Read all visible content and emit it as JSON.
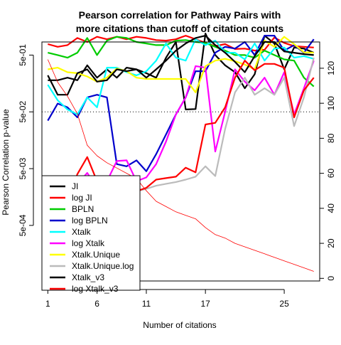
{
  "chart_data": {
    "type": "line",
    "title_lines": [
      "Pearson correlation for Pathway Pairs with",
      "more citations than cutoff of citation counts"
    ],
    "xlabel": "Number of citations",
    "ylabel": "Pearson Correlation p-value",
    "x": [
      1,
      2,
      3,
      4,
      5,
      6,
      7,
      8,
      9,
      10,
      11,
      12,
      13,
      14,
      15,
      16,
      17,
      18,
      19,
      20,
      21,
      22,
      23,
      24,
      25,
      26,
      27,
      28
    ],
    "xticks": [
      1,
      6,
      11,
      17,
      25
    ],
    "xlim": [
      0.4,
      28.6
    ],
    "y_left_log10_range": [
      -4.28,
      -0.07
    ],
    "y_left_ticks": [
      {
        "label": "5e-01",
        "value": 0.5
      },
      {
        "label": "5e-02",
        "value": 0.05
      },
      {
        "label": "5e-03",
        "value": 0.005
      },
      {
        "label": "5e-04",
        "value": 0.0005
      }
    ],
    "y_right_range": [
      -1.5,
      135
    ],
    "y_right_ticks": [
      0,
      20,
      40,
      60,
      80,
      100,
      120
    ],
    "reference_line_p": 0.05,
    "series": [
      {
        "name": "JI",
        "color": "#000000",
        "width": 2.2,
        "values": [
          0.18,
          0.18,
          0.2,
          0.18,
          0.33,
          0.2,
          0.28,
          0.2,
          0.3,
          0.28,
          0.24,
          0.2,
          0.45,
          0.85,
          0.055,
          0.056,
          1.2,
          0.5,
          0.33,
          0.25,
          0.13,
          0.23,
          1.1,
          0.8,
          0.28,
          0.68,
          0.65,
          0.55
        ]
      },
      {
        "name": "log JI",
        "color": "#ff0000",
        "width": 2.2,
        "values": [
          0.78,
          0.7,
          0.75,
          1.0,
          0.85,
          1.05,
          0.95,
          1.05,
          0.95,
          1.05,
          1.0,
          0.92,
          0.9,
          0.95,
          1.1,
          0.95,
          0.82,
          0.72,
          0.78,
          0.64,
          0.65,
          0.6,
          0.62,
          1.02,
          0.82,
          0.72,
          0.7,
          0.68
        ]
      },
      {
        "name": "BPLN",
        "color": "#00cc00",
        "width": 2.2,
        "values": [
          0.55,
          0.5,
          0.45,
          0.55,
          1.0,
          0.5,
          0.9,
          1.05,
          1.0,
          0.85,
          0.8,
          0.75,
          0.75,
          0.9,
          0.92,
          0.85,
          0.82,
          0.7,
          0.6,
          0.5,
          0.5,
          0.45,
          0.6,
          0.5,
          0.42,
          0.4,
          0.2,
          0.14
        ]
      },
      {
        "name": "log BPLN",
        "color": "#0000cc",
        "width": 2.2,
        "values": [
          0.035,
          0.07,
          0.06,
          0.04,
          0.09,
          0.1,
          0.09,
          0.006,
          0.0055,
          0.007,
          0.0045,
          0.009,
          0.02,
          0.045,
          0.09,
          0.26,
          0.26,
          0.55,
          0.7,
          0.65,
          0.85,
          0.5,
          1.1,
          1.1,
          0.6,
          0.75,
          0.55,
          0.95
        ]
      },
      {
        "name": "Xtalk",
        "color": "#00ffff",
        "width": 2.2,
        "values": [
          0.15,
          0.08,
          0.055,
          0.045,
          0.09,
          0.06,
          0.3,
          0.3,
          0.25,
          0.22,
          0.26,
          0.4,
          0.8,
          0.45,
          0.4,
          0.95,
          0.75,
          0.9,
          0.55,
          0.55,
          0.42,
          0.8,
          0.4,
          0.65,
          0.68,
          0.45,
          0.48,
          0.43
        ]
      },
      {
        "name": "log Xtalk",
        "color": "#ff00ff",
        "width": 2.2,
        "values": [
          0.0005,
          0.0011,
          0.0018,
          0.0027,
          0.0042,
          0.0023,
          0.003,
          0.0068,
          0.007,
          0.003,
          0.0035,
          0.006,
          0.015,
          0.045,
          0.09,
          0.32,
          0.3,
          0.01,
          0.05,
          0.28,
          0.17,
          0.12,
          0.2,
          0.1,
          0.25,
          0.045,
          0.13,
          0.4
        ]
      },
      {
        "name": "Xtalk.Unique",
        "color": "#ffff00",
        "width": 2.2,
        "values": [
          0.28,
          0.3,
          0.25,
          0.24,
          0.21,
          0.17,
          0.2,
          0.29,
          0.26,
          0.2,
          0.19,
          0.19,
          0.19,
          0.19,
          0.19,
          0.11,
          0.32,
          0.4,
          0.43,
          0.39,
          0.34,
          0.28,
          0.9,
          0.7,
          1.05,
          0.78,
          0.56,
          0.55
        ]
      },
      {
        "name": "Xtalk.Unique.log",
        "color": "#bbbbbb",
        "width": 2.2,
        "values": [
          0.0005,
          0.0007,
          0.0008,
          0.0009,
          0.0011,
          0.0013,
          0.0014,
          0.0016,
          0.0018,
          0.002,
          0.0022,
          0.0025,
          0.0027,
          0.0029,
          0.0032,
          0.0036,
          0.0055,
          0.0037,
          0.025,
          0.11,
          0.2,
          0.1,
          0.13,
          0.1,
          0.2,
          0.028,
          0.09,
          0.45
        ]
      },
      {
        "name": "Xtalk_v3",
        "color": "#000000",
        "width": 2.2,
        "values": [
          0.22,
          0.1,
          0.1,
          0.24,
          0.28,
          0.17,
          0.18,
          0.28,
          0.26,
          0.28,
          0.2,
          0.28,
          0.4,
          0.6,
          0.8,
          1.0,
          1.1,
          0.75,
          0.55,
          0.38,
          0.25,
          0.48,
          0.85,
          0.85,
          0.58,
          0.55,
          0.52,
          0.5
        ]
      },
      {
        "name": "log Xtalk_v3",
        "color": "#ff0000",
        "width": 2.2,
        "values": [
          0.0005,
          0.0011,
          0.0015,
          0.004,
          0.008,
          0.003,
          0.002,
          0.0025,
          0.0022,
          0.002,
          0.0023,
          0.0032,
          0.0034,
          0.0036,
          0.0052,
          0.0043,
          0.03,
          0.032,
          0.06,
          0.2,
          0.4,
          0.27,
          0.35,
          0.35,
          0.3,
          0.04,
          0.12,
          0.2
        ]
      },
      {
        "name": "",
        "color": "#ff0000",
        "width": 0.8,
        "axis": "right",
        "values": [
          125,
          112,
          104,
          94,
          76,
          70,
          66,
          63,
          60,
          57,
          50,
          44,
          41,
          38,
          36,
          34,
          29,
          25,
          23,
          20,
          18,
          16,
          14,
          12,
          10,
          8,
          6,
          4
        ]
      }
    ],
    "legend": {
      "position": "bottom-left",
      "entries": [
        {
          "name": "JI",
          "color": "#000000"
        },
        {
          "name": "log JI",
          "color": "#ff0000"
        },
        {
          "name": "BPLN",
          "color": "#00cc00"
        },
        {
          "name": "log BPLN",
          "color": "#0000cc"
        },
        {
          "name": "Xtalk",
          "color": "#00ffff"
        },
        {
          "name": "log Xtalk",
          "color": "#ff00ff"
        },
        {
          "name": "Xtalk.Unique",
          "color": "#ffff00"
        },
        {
          "name": "Xtalk.Unique.log",
          "color": "#bbbbbb"
        },
        {
          "name": "Xtalk_v3",
          "color": "#000000"
        },
        {
          "name": "log Xtalk_v3",
          "color": "#ff0000"
        }
      ]
    }
  }
}
